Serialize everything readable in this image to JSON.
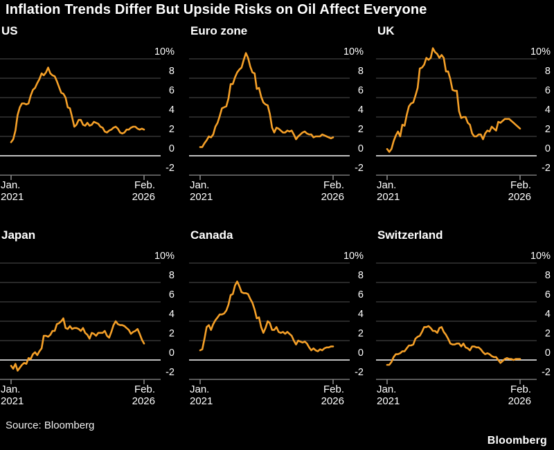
{
  "title": "Inflation Trends Differ But Upside Risks on Oil Affect Everyone",
  "footer": {
    "source": "Source: Bloomberg",
    "brand": "Bloomberg"
  },
  "colors": {
    "background": "#000000",
    "line": "#F5A028",
    "grid": "#4F4F4F",
    "zero_line": "#FFFFFF",
    "axis": "#909090",
    "text": "#FFFFFF"
  },
  "axes": {
    "y_tick_labels": [
      "10%",
      "8",
      "6",
      "4",
      "2",
      "0",
      "-2"
    ],
    "y_tick_values": [
      10,
      8,
      6,
      4,
      2,
      0,
      -2
    ],
    "x_start_lines": [
      "Jan.",
      "2021"
    ],
    "x_end_lines": [
      "Feb.",
      "2026"
    ],
    "ylim": [
      -2,
      10
    ],
    "grid": true,
    "legend": false
  },
  "chart_data": {
    "type": "line",
    "x_unit": "month",
    "x_range": [
      "Jan. 2021",
      "Feb. 2026"
    ],
    "points_per_series": 62,
    "ylim": [
      -2,
      10
    ],
    "panels": [
      {
        "title": "US",
        "values": [
          1.4,
          1.7,
          2.6,
          4.2,
          5.0,
          5.4,
          5.4,
          5.3,
          5.4,
          6.2,
          6.8,
          7.0,
          7.5,
          7.9,
          8.5,
          8.3,
          8.6,
          9.1,
          8.5,
          8.3,
          8.2,
          7.7,
          7.1,
          6.5,
          6.4,
          6.0,
          5.0,
          4.9,
          4.0,
          3.0,
          3.2,
          3.7,
          3.7,
          3.2,
          3.1,
          3.4,
          3.1,
          3.2,
          3.5,
          3.4,
          3.3,
          3.0,
          2.9,
          2.5,
          2.4,
          2.6,
          2.7,
          2.9,
          3.0,
          2.8,
          2.4,
          2.3,
          2.4,
          2.7,
          2.7,
          2.9,
          3.0,
          3.0,
          2.8,
          2.7,
          2.8,
          2.7
        ]
      },
      {
        "title": "Euro zone",
        "values": [
          0.9,
          0.9,
          1.3,
          1.6,
          2.0,
          1.9,
          2.2,
          3.0,
          3.4,
          4.1,
          4.9,
          5.0,
          5.1,
          5.9,
          7.4,
          7.4,
          8.1,
          8.6,
          8.9,
          9.1,
          9.9,
          10.6,
          10.1,
          9.2,
          8.6,
          8.5,
          6.9,
          7.0,
          6.1,
          5.5,
          5.3,
          5.2,
          4.3,
          2.9,
          2.4,
          2.9,
          2.8,
          2.6,
          2.4,
          2.4,
          2.6,
          2.5,
          2.6,
          2.2,
          1.7,
          2.0,
          2.2,
          2.4,
          2.5,
          2.3,
          2.2,
          2.2,
          1.9,
          2.0,
          2.0,
          2.0,
          2.2,
          2.1,
          2.0,
          1.9,
          1.8,
          1.9
        ]
      },
      {
        "title": "UK",
        "values": [
          0.7,
          0.4,
          0.7,
          1.5,
          2.1,
          2.5,
          2.0,
          3.2,
          3.1,
          4.2,
          5.1,
          5.4,
          5.5,
          6.2,
          7.0,
          9.0,
          9.1,
          9.4,
          10.1,
          9.9,
          10.1,
          11.1,
          10.7,
          10.5,
          10.1,
          10.4,
          10.1,
          8.7,
          8.7,
          7.9,
          6.8,
          6.7,
          6.7,
          4.6,
          3.9,
          4.0,
          4.0,
          3.4,
          3.2,
          2.3,
          2.0,
          2.0,
          2.2,
          2.2,
          1.7,
          2.3,
          2.6,
          2.5,
          3.0,
          2.8,
          2.6,
          3.5,
          3.4,
          3.6,
          3.8,
          3.8,
          3.8,
          3.6,
          3.4,
          3.2,
          3.0,
          2.8
        ]
      },
      {
        "title": "Japan",
        "values": [
          -0.6,
          -0.9,
          -0.4,
          -1.1,
          -0.8,
          -0.5,
          -0.3,
          -0.4,
          0.2,
          0.1,
          0.6,
          0.8,
          0.5,
          0.9,
          1.2,
          2.5,
          2.5,
          2.4,
          2.6,
          3.0,
          3.0,
          3.7,
          3.8,
          4.0,
          4.3,
          3.3,
          3.2,
          3.5,
          3.2,
          3.3,
          3.3,
          3.2,
          3.0,
          3.3,
          2.8,
          2.6,
          2.2,
          2.8,
          2.7,
          2.5,
          2.8,
          2.8,
          2.8,
          3.0,
          2.5,
          2.3,
          2.9,
          3.6,
          4.0,
          3.7,
          3.6,
          3.6,
          3.5,
          3.3,
          3.1,
          2.7,
          2.9,
          3.0,
          3.2,
          2.7,
          2.1,
          1.7
        ]
      },
      {
        "title": "Canada",
        "values": [
          1.0,
          1.1,
          2.2,
          3.4,
          3.6,
          3.1,
          3.7,
          4.1,
          4.4,
          4.7,
          4.7,
          4.8,
          5.1,
          5.7,
          6.7,
          6.8,
          7.7,
          8.1,
          7.6,
          7.0,
          6.9,
          6.9,
          6.8,
          6.3,
          5.9,
          5.2,
          4.3,
          4.4,
          3.4,
          2.8,
          3.3,
          4.0,
          3.8,
          3.1,
          3.1,
          3.4,
          2.9,
          2.8,
          2.9,
          2.7,
          2.9,
          2.7,
          2.5,
          2.0,
          1.6,
          2.0,
          1.9,
          1.8,
          1.9,
          1.7,
          1.3,
          1.0,
          1.2,
          1.0,
          0.9,
          1.1,
          1.0,
          1.2,
          1.3,
          1.3,
          1.4,
          1.4
        ]
      },
      {
        "title": "Switzerland",
        "values": [
          -0.5,
          -0.5,
          -0.2,
          0.3,
          0.6,
          0.6,
          0.7,
          0.9,
          0.9,
          1.2,
          1.5,
          1.5,
          1.6,
          2.2,
          2.4,
          2.5,
          2.9,
          3.4,
          3.4,
          3.5,
          3.3,
          3.0,
          3.0,
          2.8,
          3.3,
          3.4,
          2.9,
          2.6,
          2.2,
          1.7,
          1.6,
          1.6,
          1.7,
          1.7,
          1.4,
          1.7,
          1.3,
          1.2,
          1.0,
          1.4,
          1.4,
          1.3,
          1.3,
          1.1,
          0.8,
          0.6,
          0.7,
          0.6,
          0.4,
          0.3,
          0.3,
          0.0,
          -0.3,
          -0.1,
          0.1,
          0.2,
          0.1,
          0.1,
          0.0,
          0.1,
          0.1,
          0.1
        ]
      }
    ]
  }
}
